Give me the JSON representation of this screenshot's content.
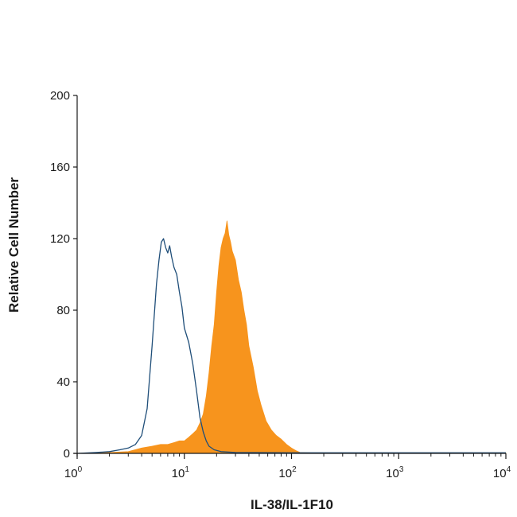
{
  "chart_data": {
    "type": "area",
    "title": "",
    "xlabel": "IL-38/IL-1F10",
    "ylabel": "Relative Cell Number",
    "xscale": "log",
    "xlim": [
      1,
      10000
    ],
    "ylim": [
      0,
      200
    ],
    "x_ticks": [
      {
        "value": 1,
        "base": "10",
        "exp": "0"
      },
      {
        "value": 10,
        "base": "10",
        "exp": "1"
      },
      {
        "value": 100,
        "base": "10",
        "exp": "2"
      },
      {
        "value": 1000,
        "base": "10",
        "exp": "3"
      },
      {
        "value": 10000,
        "base": "10",
        "exp": "4"
      }
    ],
    "y_ticks": [
      {
        "value": 0,
        "label": "0"
      },
      {
        "value": 40,
        "label": "40"
      },
      {
        "value": 80,
        "label": "80"
      },
      {
        "value": 120,
        "label": "120"
      },
      {
        "value": 160,
        "label": "160"
      },
      {
        "value": 200,
        "label": "200"
      }
    ],
    "grid": false,
    "legend": "none",
    "series": [
      {
        "style": "filled",
        "color": "#F7941D",
        "points": [
          [
            1,
            0
          ],
          [
            2,
            0.5
          ],
          [
            3,
            1
          ],
          [
            4,
            3
          ],
          [
            5,
            4
          ],
          [
            6,
            5
          ],
          [
            7,
            5
          ],
          [
            8,
            6
          ],
          [
            9,
            7
          ],
          [
            10,
            7
          ],
          [
            11,
            9
          ],
          [
            12,
            11
          ],
          [
            13,
            13
          ],
          [
            14,
            17
          ],
          [
            15,
            22
          ],
          [
            16,
            32
          ],
          [
            17,
            45
          ],
          [
            18,
            60
          ],
          [
            19,
            72
          ],
          [
            20,
            90
          ],
          [
            21,
            105
          ],
          [
            22,
            115
          ],
          [
            23,
            120
          ],
          [
            24,
            123
          ],
          [
            25,
            130
          ],
          [
            26,
            122
          ],
          [
            27,
            118
          ],
          [
            28,
            113
          ],
          [
            30,
            108
          ],
          [
            32,
            97
          ],
          [
            34,
            90
          ],
          [
            36,
            80
          ],
          [
            38,
            72
          ],
          [
            40,
            60
          ],
          [
            44,
            48
          ],
          [
            48,
            35
          ],
          [
            52,
            27
          ],
          [
            58,
            18
          ],
          [
            65,
            13
          ],
          [
            72,
            10
          ],
          [
            80,
            8
          ],
          [
            90,
            5
          ],
          [
            100,
            3
          ],
          [
            110,
            1.5
          ],
          [
            120,
            0.5
          ],
          [
            150,
            0.3
          ],
          [
            300,
            0.2
          ],
          [
            1000,
            0.2
          ],
          [
            10000,
            0.2
          ]
        ]
      },
      {
        "style": "outline",
        "color": "#1F4E79",
        "points": [
          [
            1,
            0
          ],
          [
            1.5,
            0.5
          ],
          [
            2,
            1
          ],
          [
            2.5,
            2
          ],
          [
            3,
            3
          ],
          [
            3.5,
            5
          ],
          [
            4,
            10
          ],
          [
            4.5,
            25
          ],
          [
            5,
            60
          ],
          [
            5.5,
            95
          ],
          [
            5.8,
            108
          ],
          [
            6.1,
            118
          ],
          [
            6.4,
            120
          ],
          [
            6.7,
            115
          ],
          [
            7,
            112
          ],
          [
            7.3,
            116
          ],
          [
            7.6,
            110
          ],
          [
            8,
            104
          ],
          [
            8.5,
            100
          ],
          [
            9,
            90
          ],
          [
            9.5,
            82
          ],
          [
            10,
            70
          ],
          [
            11,
            62
          ],
          [
            12,
            50
          ],
          [
            13,
            35
          ],
          [
            14,
            20
          ],
          [
            15,
            12
          ],
          [
            16,
            7
          ],
          [
            17,
            4
          ],
          [
            19,
            2
          ],
          [
            22,
            1
          ],
          [
            30,
            0.5
          ],
          [
            100,
            0.3
          ],
          [
            1000,
            0.3
          ],
          [
            10000,
            0.3
          ]
        ]
      }
    ]
  }
}
